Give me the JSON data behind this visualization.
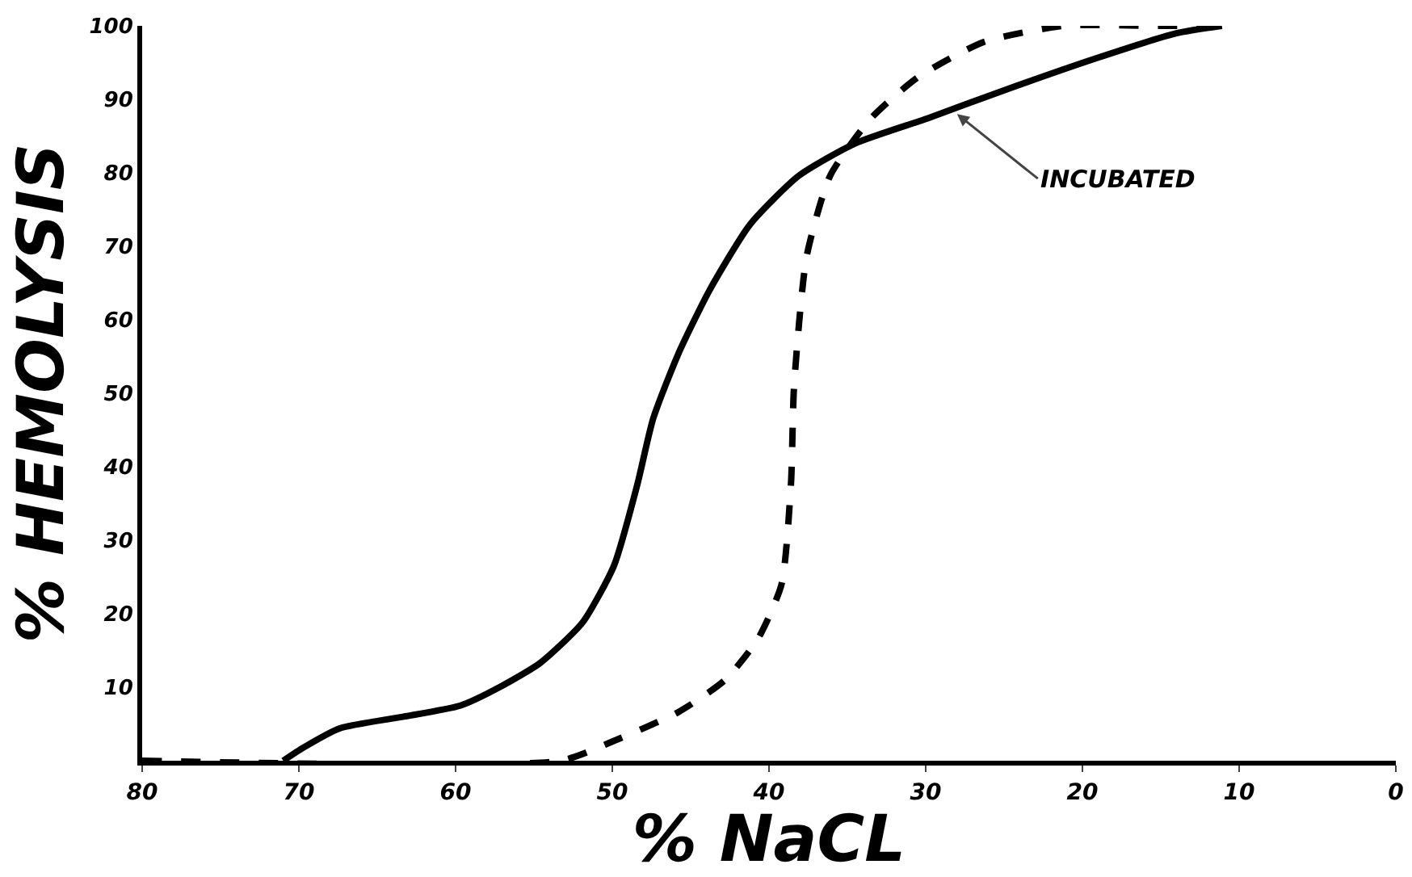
{
  "chart_data": {
    "type": "line",
    "xlabel": "% NaCL",
    "ylabel": "% HEMOLYSIS",
    "xlim": [
      80,
      0
    ],
    "xticks": [
      80,
      70,
      60,
      50,
      40,
      30,
      20,
      10,
      0
    ],
    "ylim": [
      0,
      100
    ],
    "yticks": [
      10,
      20,
      30,
      40,
      50,
      60,
      70,
      80,
      90,
      100
    ],
    "grid": false,
    "marker": "none",
    "series": [
      {
        "color": "#000000",
        "line_style": "solid",
        "x": [
          71,
          69.7,
          67.4,
          63.3,
          59.7,
          57.2,
          54.6,
          51.9,
          49.9,
          48.4,
          47.4,
          45.8,
          43.8,
          41.2,
          38.1,
          34.5,
          29.9,
          25.3,
          19.1,
          14,
          11.1
        ],
        "values": [
          0,
          1.8,
          4.4,
          6,
          7.5,
          10,
          13.3,
          18.8,
          26.5,
          37.6,
          46.5,
          55.3,
          64,
          73,
          79.6,
          84,
          87.4,
          91,
          95.6,
          99,
          100
        ]
      },
      {
        "color": "#000000",
        "line_style": "dashed",
        "x": [
          80,
          53.3,
          49.9,
          45.8,
          42.8,
          40.7,
          39.2,
          38.6,
          38.4,
          37.6,
          36.1,
          33.5,
          30.5,
          26.3,
          21.2,
          15,
          11
        ],
        "values": [
          0,
          0,
          2.7,
          6.6,
          11,
          16.6,
          24,
          37.6,
          51,
          68.6,
          79.6,
          87.4,
          93,
          97.8,
          100,
          100,
          100
        ]
      }
    ],
    "annotations": [
      {
        "text": "INCUBATED",
        "x": 28,
        "y": 88
      }
    ]
  }
}
